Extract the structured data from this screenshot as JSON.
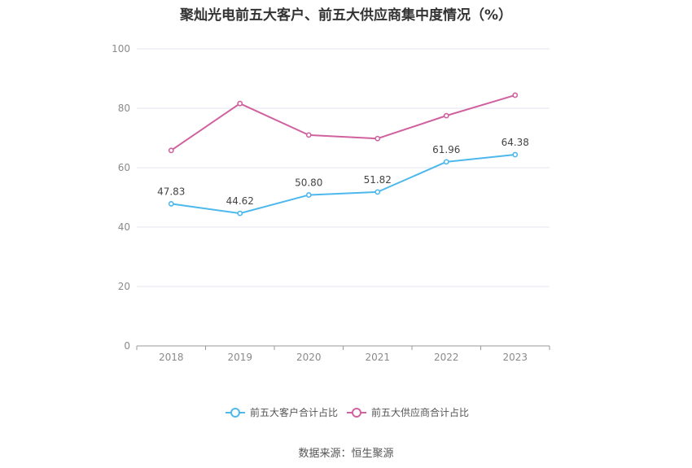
{
  "title": "聚灿光电前五大客户、前五大供应商集中度情况（%）",
  "source": "数据来源：恒生聚源",
  "chart_data": {
    "type": "line",
    "title": "聚灿光电前五大客户、前五大供应商集中度情况（%）",
    "categories": [
      "2018",
      "2019",
      "2020",
      "2021",
      "2022",
      "2023"
    ],
    "y_ticks": [
      "0",
      "20",
      "40",
      "60",
      "80",
      "100"
    ],
    "ylim": [
      0,
      100
    ],
    "grid": true,
    "legend_position": "bottom",
    "series": [
      {
        "name": "前五大客户合计占比",
        "values": [
          47.83,
          44.62,
          50.8,
          51.82,
          61.96,
          64.38
        ],
        "labels": [
          "47.83",
          "44.62",
          "50.80",
          "51.82",
          "61.96",
          "64.38"
        ],
        "color": "#4db8ec",
        "show_labels": true
      },
      {
        "name": "前五大供应商合计占比",
        "values": [
          65.8,
          81.6,
          71.0,
          69.8,
          77.5,
          84.4
        ],
        "color": "#d0619f",
        "show_labels": false
      }
    ]
  }
}
